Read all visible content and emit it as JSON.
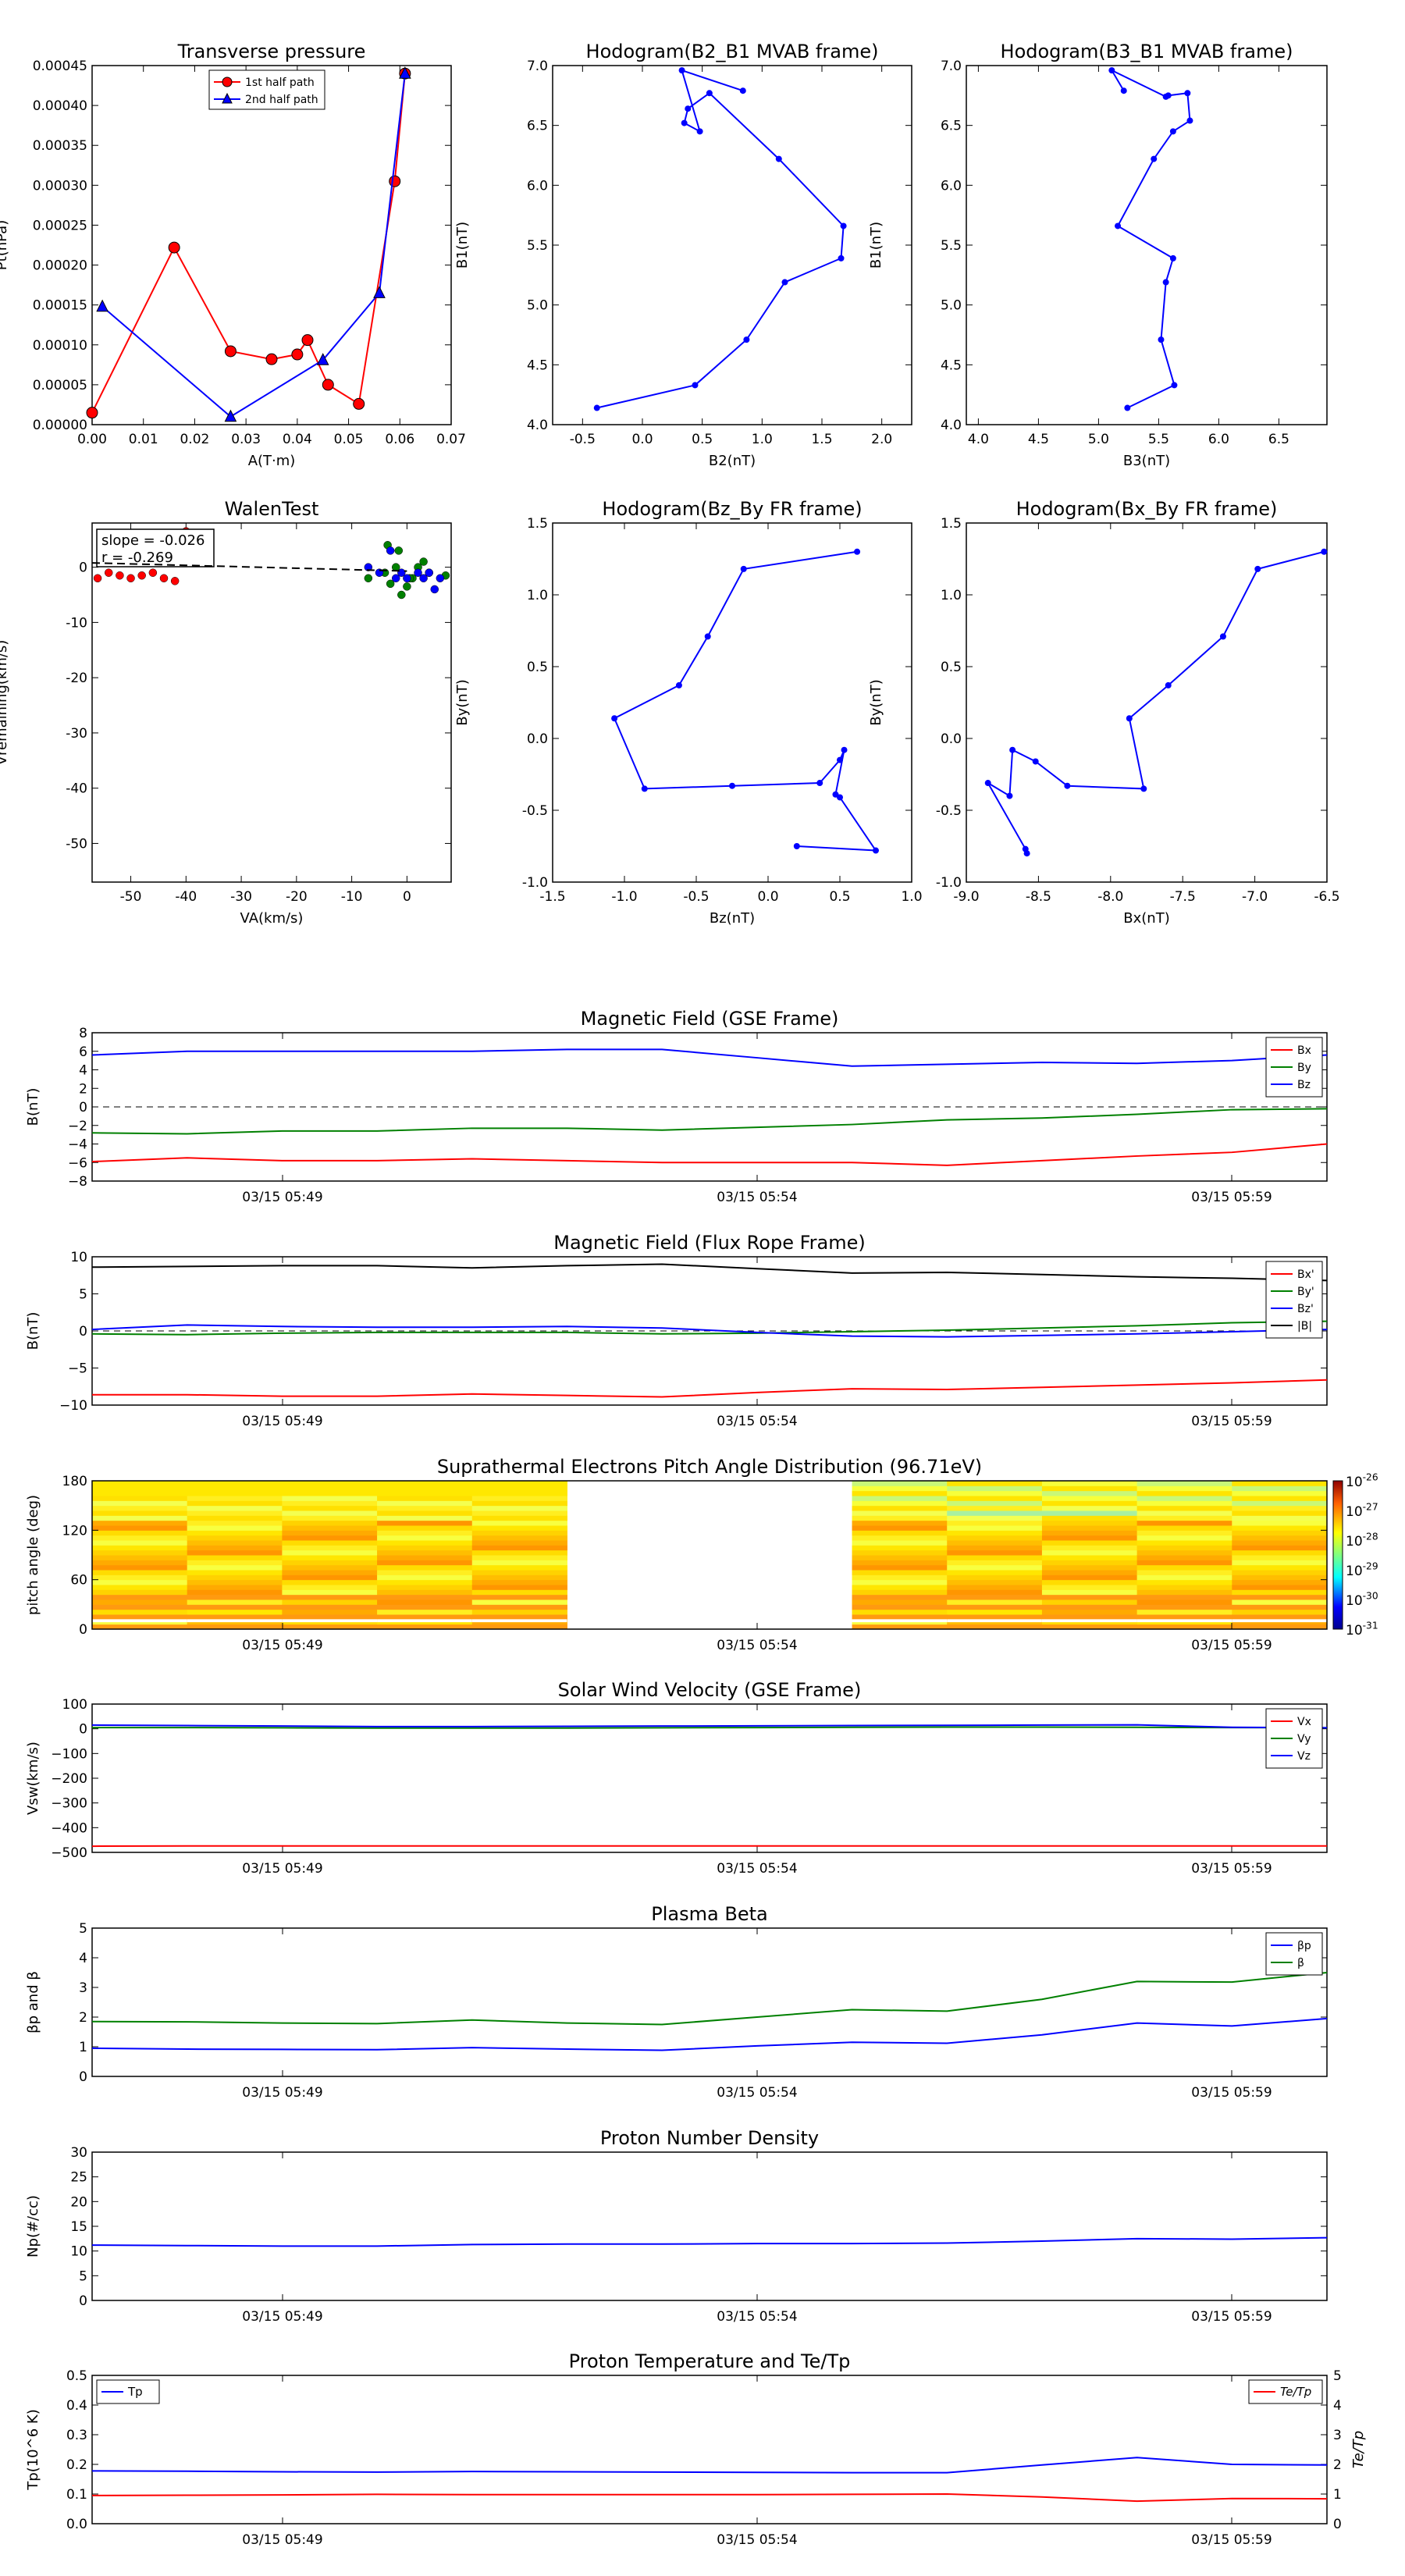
{
  "chart_data": [
    {
      "id": "pt",
      "type": "scatter",
      "title": "Transverse pressure",
      "xlabel": "A(T·m)",
      "ylabel": "Pt(nPa)",
      "xlim": [
        0,
        0.07
      ],
      "ylim": [
        0,
        0.00045
      ],
      "xticks": [
        "0.00",
        "0.01",
        "0.02",
        "0.03",
        "0.04",
        "0.05",
        "0.06",
        "0.07"
      ],
      "yticks": [
        "0.00000",
        "0.00005",
        "0.00010",
        "0.00015",
        "0.00020",
        "0.00025",
        "0.00030",
        "0.00035",
        "0.00040",
        "0.00045"
      ],
      "legend": "top-center",
      "series": [
        {
          "name": "1st half path",
          "color": "#ff0000",
          "marker": "circle",
          "x": [
            0.0,
            0.016,
            0.027,
            0.035,
            0.04,
            0.042,
            0.046,
            0.052,
            0.059,
            0.061
          ],
          "y": [
            1.5e-05,
            0.000222,
            9.2e-05,
            8.2e-05,
            8.8e-05,
            0.000106,
            5e-05,
            2.6e-05,
            0.000305,
            0.00044
          ]
        },
        {
          "name": "2nd half path",
          "color": "#0000ff",
          "marker": "triangle",
          "x": [
            0.002,
            0.027,
            0.045,
            0.056,
            0.061
          ],
          "y": [
            0.000148,
            1e-05,
            8.1e-05,
            0.000165,
            0.00044
          ]
        }
      ]
    },
    {
      "id": "h1",
      "type": "line",
      "title": "Hodogram(B2_B1 MVAB frame)",
      "xlabel": "B2(nT)",
      "ylabel": "B1(nT)",
      "xlim": [
        -0.75,
        2.25
      ],
      "ylim": [
        4.0,
        7.0
      ],
      "xticks": [
        "-0.5",
        "0.0",
        "0.5",
        "1.0",
        "1.5",
        "2.0"
      ],
      "yticks": [
        "4.0",
        "4.5",
        "5.0",
        "5.5",
        "6.0",
        "6.5",
        "7.0"
      ],
      "series": [
        {
          "color": "#0000ff",
          "x": [
            -0.38,
            0.44,
            0.87,
            1.19,
            1.66,
            1.68,
            1.14,
            0.56,
            0.38,
            0.35,
            0.48,
            0.33,
            0.84
          ],
          "y": [
            4.14,
            4.33,
            4.71,
            5.19,
            5.39,
            5.66,
            6.22,
            6.77,
            6.64,
            6.52,
            6.45,
            6.96,
            6.79
          ]
        }
      ]
    },
    {
      "id": "h2",
      "type": "line",
      "title": "Hodogram(B3_B1 MVAB frame)",
      "xlabel": "B3(nT)",
      "ylabel": "B1(nT)",
      "xlim": [
        3.9,
        6.9
      ],
      "ylim": [
        4.0,
        7.0
      ],
      "xticks": [
        "4.0",
        "4.5",
        "5.0",
        "5.5",
        "6.0",
        "6.5"
      ],
      "yticks": [
        "4.0",
        "4.5",
        "5.0",
        "5.5",
        "6.0",
        "6.5",
        "7.0"
      ],
      "series": [
        {
          "color": "#0000ff",
          "x": [
            5.24,
            5.63,
            5.52,
            5.56,
            5.62,
            5.16,
            5.46,
            5.62,
            5.76,
            5.74,
            5.58,
            5.56,
            5.11,
            5.21
          ],
          "y": [
            4.14,
            4.33,
            4.71,
            5.19,
            5.39,
            5.66,
            6.22,
            6.45,
            6.54,
            6.77,
            6.75,
            6.74,
            6.96,
            6.79
          ]
        }
      ]
    },
    {
      "id": "walen",
      "type": "scatter",
      "title": "WalenTest",
      "xlabel": "VA(km/s)",
      "ylabel": "Vremaining(km/s)",
      "xlim": [
        -57,
        8
      ],
      "ylim": [
        -57,
        8
      ],
      "xticks": [
        "-50",
        "-40",
        "-30",
        "-20",
        "-10",
        "0"
      ],
      "yticks": [
        "-50",
        "-40",
        "-30",
        "-20",
        "-10",
        "0"
      ],
      "annotation": [
        "slope = -0.026",
        "r = -0.269"
      ],
      "fit": {
        "slope": -0.026,
        "intercept": -0.7
      },
      "series": [
        {
          "color": "#ff0000",
          "x": [
            -56,
            -54,
            -52,
            -50,
            -48,
            -46,
            -44,
            -42,
            -40
          ],
          "y": [
            -2,
            -1,
            -1.5,
            -2,
            -1.5,
            -1,
            -2,
            -2.5,
            6.5
          ]
        },
        {
          "color": "#008000",
          "x": [
            -7,
            -4,
            -3,
            -2,
            -1,
            0,
            1,
            2,
            3,
            4,
            7,
            -3.5,
            -1.5,
            0.5
          ],
          "y": [
            -2,
            -1,
            -3,
            0,
            -5,
            -3.5,
            -2,
            0,
            1,
            -1,
            -1.5,
            4,
            3,
            -2
          ]
        },
        {
          "color": "#0000ff",
          "x": [
            -7,
            -5,
            -3,
            -2,
            -1,
            0,
            2,
            3,
            4,
            5,
            6
          ],
          "y": [
            0,
            -1,
            3,
            -2,
            -1,
            -2,
            -1,
            -2,
            -1,
            -4,
            -2
          ]
        }
      ]
    },
    {
      "id": "fr1",
      "type": "line",
      "title": "Hodogram(Bz_By FR frame)",
      "xlabel": "Bz(nT)",
      "ylabel": "By(nT)",
      "xlim": [
        -1.5,
        1.0
      ],
      "ylim": [
        -1.0,
        1.5
      ],
      "xticks": [
        "-1.5",
        "-1.0",
        "-0.5",
        "0.0",
        "0.5",
        "1.0"
      ],
      "yticks": [
        "-1.0",
        "-0.5",
        "0.0",
        "0.5",
        "1.0",
        "1.5"
      ],
      "series": [
        {
          "color": "#0000ff",
          "x": [
            0.62,
            -0.17,
            -0.42,
            -0.62,
            -1.07,
            -0.86,
            -0.25,
            0.36,
            0.5,
            0.53,
            0.47,
            0.5,
            0.75,
            0.2
          ],
          "y": [
            1.3,
            1.18,
            0.71,
            0.37,
            0.14,
            -0.35,
            -0.33,
            -0.31,
            -0.15,
            -0.08,
            -0.39,
            -0.41,
            -0.78,
            -0.75
          ]
        }
      ]
    },
    {
      "id": "fr2",
      "type": "line",
      "title": "Hodogram(Bx_By FR frame)",
      "xlabel": "Bx(nT)",
      "ylabel": "By(nT)",
      "xlim": [
        -9.0,
        -6.5
      ],
      "ylim": [
        -1.0,
        1.5
      ],
      "xticks": [
        "-9.0",
        "-8.5",
        "-8.0",
        "-7.5",
        "-7.0",
        "-6.5"
      ],
      "yticks": [
        "-1.0",
        "-0.5",
        "0.0",
        "0.5",
        "1.0",
        "1.5"
      ],
      "series": [
        {
          "color": "#0000ff",
          "x": [
            -6.52,
            -6.98,
            -7.22,
            -7.6,
            -7.87,
            -7.77,
            -8.3,
            -8.52,
            -8.68,
            -8.7,
            -8.85,
            -8.59,
            -8.58
          ],
          "y": [
            1.3,
            1.18,
            0.71,
            0.37,
            0.14,
            -0.35,
            -0.33,
            -0.16,
            -0.08,
            -0.4,
            -0.31,
            -0.77,
            -0.8
          ]
        }
      ]
    },
    {
      "id": "mag_gse",
      "type": "line",
      "title": "Magnetic Field (GSE Frame)",
      "ylabel": "B(nT)",
      "ylim": [
        -8,
        8
      ],
      "yticks": [
        "−8",
        "−6",
        "−4",
        "−2",
        "0",
        "2",
        "4",
        "6",
        "8"
      ],
      "xtick_labels": [
        "03/15 05:49",
        "03/15 05:54",
        "03/15 05:59"
      ],
      "zero_line": true,
      "legend": "top-right",
      "x": [
        0,
        1,
        2,
        3,
        4,
        5,
        6,
        7,
        8,
        9,
        10,
        11,
        12,
        13
      ],
      "series": [
        {
          "name": "Bx",
          "color": "#ff0000",
          "values": [
            -5.9,
            -5.5,
            -5.8,
            -5.8,
            -5.6,
            -5.8,
            -6.0,
            -6.0,
            -6.0,
            -6.3,
            -5.8,
            -5.3,
            -4.9,
            -4.0
          ]
        },
        {
          "name": "By",
          "color": "#008000",
          "values": [
            -2.8,
            -2.9,
            -2.6,
            -2.6,
            -2.3,
            -2.3,
            -2.5,
            -2.2,
            -1.9,
            -1.4,
            -1.2,
            -0.8,
            -0.3,
            -0.2
          ]
        },
        {
          "name": "Bz",
          "color": "#0000ff",
          "values": [
            5.6,
            6.0,
            6.0,
            6.0,
            6.0,
            6.2,
            6.2,
            5.3,
            4.4,
            4.6,
            4.8,
            4.7,
            5.0,
            5.6
          ]
        }
      ]
    },
    {
      "id": "mag_fr",
      "type": "line",
      "title": "Magnetic Field (Flux Rope Frame)",
      "ylabel": "B(nT)",
      "ylim": [
        -10,
        10
      ],
      "yticks": [
        "−10",
        "−5",
        "0",
        "5",
        "10"
      ],
      "xtick_labels": [
        "03/15 05:49",
        "03/15 05:54",
        "03/15 05:59"
      ],
      "zero_line": true,
      "legend": "top-right",
      "x": [
        0,
        1,
        2,
        3,
        4,
        5,
        6,
        7,
        8,
        9,
        10,
        11,
        12,
        13
      ],
      "series": [
        {
          "name": "Bx'",
          "color": "#ff0000",
          "values": [
            -8.6,
            -8.6,
            -8.8,
            -8.8,
            -8.5,
            -8.7,
            -8.9,
            -8.3,
            -7.8,
            -7.9,
            -7.6,
            -7.3,
            -7.0,
            -6.6
          ]
        },
        {
          "name": "By'",
          "color": "#008000",
          "values": [
            -0.4,
            -0.5,
            -0.3,
            -0.2,
            -0.2,
            -0.2,
            -0.4,
            -0.3,
            -0.1,
            0.1,
            0.4,
            0.7,
            1.1,
            1.3
          ]
        },
        {
          "name": "Bz'",
          "color": "#0000ff",
          "values": [
            0.2,
            0.8,
            0.6,
            0.5,
            0.5,
            0.6,
            0.4,
            -0.2,
            -0.7,
            -0.8,
            -0.6,
            -0.4,
            -0.1,
            0.2
          ]
        },
        {
          "name": "|B|",
          "color": "#000000",
          "values": [
            8.6,
            8.7,
            8.8,
            8.8,
            8.5,
            8.8,
            9.0,
            8.4,
            7.8,
            7.9,
            7.6,
            7.3,
            7.1,
            6.8
          ]
        }
      ]
    },
    {
      "id": "pad",
      "type": "heatmap",
      "title": "Suprathermal Electrons Pitch Angle Distribution (96.71eV)",
      "ylabel": "pitch angle (deg)",
      "ylim": [
        0,
        180
      ],
      "yticks": [
        "0",
        "60",
        "120",
        "180"
      ],
      "xtick_labels": [
        "03/15 05:49",
        "03/15 05:54",
        "03/15 05:59"
      ],
      "colorbar": [
        "10-26",
        "10-27",
        "10-28",
        "10-29",
        "10-30",
        "10-31"
      ],
      "colorbar_exp": [
        "-26",
        "-27",
        "-28",
        "-29",
        "-30",
        "-31"
      ],
      "data_columns": [
        0,
        1,
        2,
        3,
        4,
        8,
        9,
        10,
        11,
        12
      ]
    },
    {
      "id": "vsw",
      "type": "line",
      "title": "Solar Wind Velocity (GSE Frame)",
      "ylabel": "Vsw(km/s)",
      "ylim": [
        -500,
        100
      ],
      "yticks": [
        "−500",
        "−400",
        "−300",
        "−200",
        "−100",
        "0",
        "100"
      ],
      "xtick_labels": [
        "03/15 05:49",
        "03/15 05:54",
        "03/15 05:59"
      ],
      "legend": "top-right",
      "x": [
        0,
        1,
        2,
        3,
        4,
        5,
        6,
        7,
        8,
        9,
        10,
        11,
        12,
        13
      ],
      "series": [
        {
          "name": "Vx",
          "color": "#ff0000",
          "values": [
            -475,
            -474,
            -474,
            -474,
            -474,
            -474,
            -474,
            -474,
            -474,
            -474,
            -474,
            -474,
            -474,
            -474
          ]
        },
        {
          "name": "Vy",
          "color": "#008000",
          "values": [
            5,
            5,
            4,
            3,
            3,
            3,
            4,
            5,
            6,
            7,
            7,
            6,
            5,
            4
          ]
        },
        {
          "name": "Vz",
          "color": "#0000ff",
          "values": [
            15,
            13,
            11,
            9,
            9,
            10,
            11,
            12,
            13,
            14,
            15,
            16,
            6,
            4
          ]
        }
      ]
    },
    {
      "id": "beta",
      "type": "line",
      "title": "Plasma Beta",
      "ylabel": "βp and β",
      "ylim": [
        0,
        5
      ],
      "yticks": [
        "0",
        "1",
        "2",
        "3",
        "4",
        "5"
      ],
      "xtick_labels": [
        "03/15 05:49",
        "03/15 05:54",
        "03/15 05:59"
      ],
      "legend": "top-right",
      "x": [
        0,
        1,
        2,
        3,
        4,
        5,
        6,
        7,
        8,
        9,
        10,
        11,
        12,
        13
      ],
      "series": [
        {
          "name": "βp",
          "color": "#0000ff",
          "values": [
            0.95,
            0.92,
            0.91,
            0.9,
            0.97,
            0.92,
            0.88,
            1.03,
            1.15,
            1.12,
            1.4,
            1.8,
            1.7,
            1.95
          ]
        },
        {
          "name": "β",
          "color": "#008000",
          "values": [
            1.85,
            1.84,
            1.8,
            1.78,
            1.9,
            1.8,
            1.75,
            2.0,
            2.25,
            2.2,
            2.6,
            3.2,
            3.18,
            3.5
          ]
        }
      ]
    },
    {
      "id": "np",
      "type": "line",
      "title": "Proton Number Density",
      "ylabel": "Np(#/cc)",
      "ylim": [
        0,
        30
      ],
      "yticks": [
        "0",
        "5",
        "10",
        "15",
        "20",
        "25",
        "30"
      ],
      "xtick_labels": [
        "03/15 05:49",
        "03/15 05:54",
        "03/15 05:59"
      ],
      "x": [
        0,
        1,
        2,
        3,
        4,
        5,
        6,
        7,
        8,
        9,
        10,
        11,
        12,
        13
      ],
      "series": [
        {
          "color": "#0000ff",
          "values": [
            11.2,
            11.1,
            11.0,
            11.0,
            11.3,
            11.4,
            11.4,
            11.5,
            11.5,
            11.6,
            12.0,
            12.5,
            12.4,
            12.7
          ]
        }
      ]
    },
    {
      "id": "tp",
      "type": "line",
      "title": "Proton Temperature and Te/Tp",
      "ylabel": "Tp(10^6 K)",
      "ylim": [
        0,
        0.5
      ],
      "yticks": [
        "0.0",
        "0.1",
        "0.2",
        "0.3",
        "0.4",
        "0.5"
      ],
      "y2label": "Te/Tp",
      "y2lim": [
        0,
        5
      ],
      "y2ticks": [
        "0",
        "1",
        "2",
        "3",
        "4",
        "5"
      ],
      "xtick_labels": [
        "03/15 05:49",
        "03/15 05:54",
        "03/15 05:59"
      ],
      "x": [
        0,
        1,
        2,
        3,
        4,
        5,
        6,
        7,
        8,
        9,
        10,
        11,
        12,
        13
      ],
      "series": [
        {
          "name": "Tp",
          "color": "#0000ff",
          "axis": "left",
          "legend": "top-left",
          "values": [
            0.178,
            0.177,
            0.175,
            0.174,
            0.176,
            0.175,
            0.174,
            0.173,
            0.172,
            0.172,
            0.198,
            0.223,
            0.2,
            0.198
          ]
        },
        {
          "name": "Te/Tp",
          "color": "#ff0000",
          "axis": "right",
          "legend": "top-right",
          "values": [
            0.95,
            0.96,
            0.97,
            0.99,
            0.98,
            0.98,
            0.98,
            0.98,
            0.99,
            1.0,
            0.9,
            0.76,
            0.85,
            0.84
          ]
        }
      ]
    }
  ]
}
